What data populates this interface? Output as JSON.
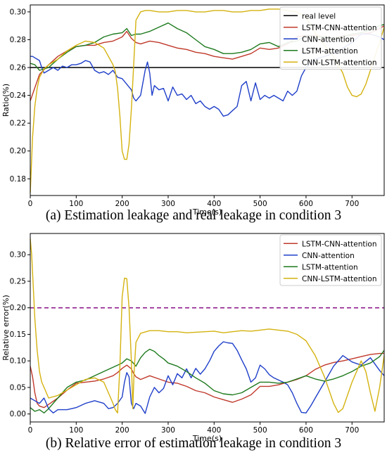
{
  "chart_data": [
    {
      "type": "line",
      "caption": "(a) Estimation leakage and real leakage in condition 3",
      "xlabel": "Time(s)",
      "ylabel": "Ratio(%)",
      "xlim": [
        0,
        770
      ],
      "ylim": [
        0.168,
        0.305
      ],
      "xticks": [
        0,
        100,
        200,
        300,
        400,
        500,
        600,
        700
      ],
      "yticks": [
        0.18,
        0.2,
        0.22,
        0.24,
        0.26,
        0.28,
        0.3
      ],
      "ytick_labels": [
        "0.18",
        "0.20",
        "0.22",
        "0.24",
        "0.26",
        "0.28",
        "0.30"
      ],
      "grid": false,
      "legend_position": "top-right",
      "series": [
        {
          "name": "real level",
          "color": "#000000",
          "x": [
            0,
            770
          ],
          "values": [
            0.26,
            0.26
          ]
        },
        {
          "name": "LSTM-CNN-attention",
          "color": "#c0392b",
          "x": [
            0,
            20,
            40,
            60,
            80,
            100,
            120,
            140,
            160,
            180,
            200,
            210,
            220,
            230,
            240,
            260,
            280,
            300,
            320,
            340,
            360,
            380,
            400,
            420,
            440,
            460,
            480,
            500,
            520,
            540,
            560,
            580,
            600,
            620,
            640,
            660,
            680,
            700,
            720,
            740,
            760,
            770
          ],
          "values": [
            0.236,
            0.255,
            0.262,
            0.268,
            0.272,
            0.275,
            0.276,
            0.276,
            0.278,
            0.279,
            0.282,
            0.286,
            0.281,
            0.278,
            0.277,
            0.279,
            0.278,
            0.276,
            0.274,
            0.273,
            0.271,
            0.27,
            0.268,
            0.267,
            0.266,
            0.268,
            0.27,
            0.274,
            0.273,
            0.274,
            0.277,
            0.282,
            0.283,
            0.283,
            0.282,
            0.281,
            0.283,
            0.283,
            0.284,
            0.285,
            0.288,
            0.29
          ]
        },
        {
          "name": "CNN-attention",
          "color": "#1f3fc9",
          "x": [
            0,
            5,
            10,
            15,
            20,
            25,
            30,
            40,
            50,
            60,
            70,
            80,
            90,
            100,
            110,
            120,
            130,
            140,
            150,
            160,
            170,
            180,
            190,
            200,
            210,
            220,
            225,
            230,
            240,
            250,
            255,
            260,
            265,
            270,
            280,
            290,
            300,
            310,
            320,
            330,
            340,
            350,
            360,
            370,
            380,
            390,
            400,
            410,
            420,
            430,
            440,
            450,
            460,
            470,
            480,
            490,
            500,
            510,
            520,
            530,
            540,
            550,
            560,
            570,
            580,
            590,
            600,
            620,
            640,
            660,
            680,
            700,
            720,
            740,
            760,
            770
          ],
          "values": [
            0.268,
            0.268,
            0.267,
            0.266,
            0.265,
            0.26,
            0.256,
            0.258,
            0.26,
            0.258,
            0.261,
            0.26,
            0.262,
            0.262,
            0.263,
            0.265,
            0.264,
            0.258,
            0.256,
            0.257,
            0.255,
            0.258,
            0.253,
            0.252,
            0.248,
            0.244,
            0.238,
            0.236,
            0.24,
            0.258,
            0.264,
            0.256,
            0.24,
            0.247,
            0.244,
            0.245,
            0.236,
            0.246,
            0.24,
            0.241,
            0.237,
            0.24,
            0.234,
            0.236,
            0.232,
            0.23,
            0.232,
            0.23,
            0.225,
            0.226,
            0.229,
            0.232,
            0.247,
            0.25,
            0.236,
            0.249,
            0.237,
            0.24,
            0.238,
            0.24,
            0.238,
            0.236,
            0.243,
            0.24,
            0.243,
            0.254,
            0.26,
            0.266,
            0.268,
            0.27,
            0.274,
            0.278,
            0.284,
            0.284,
            0.282,
            0.28
          ]
        },
        {
          "name": "LSTM-attention",
          "color": "#1e7a1e",
          "x": [
            0,
            10,
            20,
            40,
            60,
            80,
            100,
            120,
            140,
            160,
            180,
            200,
            210,
            220,
            230,
            240,
            260,
            280,
            300,
            320,
            340,
            360,
            380,
            400,
            420,
            440,
            460,
            480,
            500,
            520,
            540,
            560,
            580,
            600,
            620,
            640,
            660,
            680,
            700,
            720,
            740,
            760,
            770
          ],
          "values": [
            0.263,
            0.262,
            0.258,
            0.26,
            0.266,
            0.271,
            0.275,
            0.276,
            0.278,
            0.282,
            0.284,
            0.285,
            0.288,
            0.283,
            0.284,
            0.284,
            0.286,
            0.289,
            0.292,
            0.288,
            0.285,
            0.28,
            0.275,
            0.273,
            0.27,
            0.27,
            0.271,
            0.273,
            0.277,
            0.278,
            0.275,
            0.278,
            0.279,
            0.283,
            0.282,
            0.282,
            0.281,
            0.282,
            0.284,
            0.285,
            0.287,
            0.29,
            0.291
          ]
        },
        {
          "name": "CNN-LSTM-attention",
          "color": "#d4b20f",
          "x": [
            0,
            5,
            10,
            15,
            20,
            30,
            40,
            60,
            80,
            100,
            120,
            140,
            160,
            170,
            180,
            185,
            190,
            195,
            200,
            205,
            210,
            215,
            220,
            225,
            230,
            240,
            250,
            260,
            280,
            300,
            320,
            340,
            360,
            380,
            400,
            420,
            440,
            460,
            480,
            500,
            520,
            540,
            560,
            580,
            600,
            620,
            640,
            660,
            680,
            690,
            700,
            710,
            720,
            730,
            740,
            750,
            760,
            770
          ],
          "values": [
            0.17,
            0.21,
            0.232,
            0.245,
            0.253,
            0.259,
            0.262,
            0.266,
            0.272,
            0.276,
            0.279,
            0.278,
            0.274,
            0.268,
            0.262,
            0.257,
            0.245,
            0.225,
            0.2,
            0.194,
            0.194,
            0.205,
            0.23,
            0.262,
            0.294,
            0.3,
            0.301,
            0.301,
            0.3,
            0.3,
            0.301,
            0.301,
            0.3,
            0.3,
            0.301,
            0.301,
            0.3,
            0.3,
            0.301,
            0.301,
            0.302,
            0.302,
            0.301,
            0.3,
            0.296,
            0.285,
            0.276,
            0.268,
            0.256,
            0.246,
            0.24,
            0.239,
            0.241,
            0.248,
            0.258,
            0.268,
            0.278,
            0.289
          ]
        }
      ]
    },
    {
      "type": "line",
      "caption": "(b) Relative error of estimation leakage in condition 3",
      "xlabel": "Time(s)",
      "ylabel": "Relative error(%)",
      "xlim": [
        0,
        770
      ],
      "ylim": [
        -0.015,
        0.34
      ],
      "xticks": [
        0,
        100,
        200,
        300,
        400,
        500,
        600,
        700
      ],
      "yticks": [
        0.0,
        0.05,
        0.1,
        0.15,
        0.2,
        0.25,
        0.3
      ],
      "ytick_labels": [
        "0.00",
        "0.05",
        "0.10",
        "0.15",
        "0.20",
        "0.25",
        "0.30"
      ],
      "grid": false,
      "legend_position": "top-right",
      "reference_line": {
        "y": 0.2,
        "color": "#8e1a8e",
        "style": "dashed"
      },
      "series": [
        {
          "name": "LSTM-CNN-attention",
          "color": "#c0392b",
          "x": [
            0,
            5,
            10,
            15,
            20,
            30,
            40,
            60,
            80,
            100,
            120,
            140,
            160,
            180,
            190,
            200,
            210,
            220,
            225,
            230,
            240,
            260,
            280,
            300,
            320,
            340,
            360,
            380,
            400,
            420,
            440,
            460,
            480,
            500,
            520,
            540,
            560,
            580,
            600,
            620,
            640,
            660,
            680,
            700,
            720,
            740,
            760,
            770
          ],
          "values": [
            0.09,
            0.07,
            0.04,
            0.02,
            0.015,
            0.012,
            0.018,
            0.03,
            0.045,
            0.058,
            0.06,
            0.062,
            0.066,
            0.072,
            0.078,
            0.086,
            0.092,
            0.085,
            0.076,
            0.07,
            0.065,
            0.072,
            0.066,
            0.06,
            0.058,
            0.052,
            0.044,
            0.04,
            0.032,
            0.027,
            0.022,
            0.028,
            0.036,
            0.052,
            0.052,
            0.055,
            0.06,
            0.065,
            0.072,
            0.084,
            0.092,
            0.097,
            0.1,
            0.104,
            0.108,
            0.112,
            0.114,
            0.114
          ]
        },
        {
          "name": "CNN-attention",
          "color": "#1f3fc9",
          "x": [
            0,
            10,
            20,
            30,
            40,
            50,
            60,
            80,
            100,
            120,
            140,
            160,
            170,
            180,
            190,
            200,
            205,
            210,
            215,
            220,
            225,
            230,
            240,
            250,
            260,
            270,
            280,
            290,
            300,
            310,
            320,
            330,
            340,
            350,
            360,
            370,
            380,
            390,
            400,
            410,
            420,
            430,
            440,
            450,
            460,
            470,
            480,
            490,
            500,
            510,
            520,
            530,
            540,
            550,
            560,
            570,
            580,
            590,
            600,
            610,
            620,
            640,
            660,
            680,
            700,
            720,
            740,
            760,
            770
          ],
          "values": [
            0.03,
            0.025,
            0.02,
            0.03,
            0.01,
            0.002,
            0.008,
            0.008,
            0.012,
            0.02,
            0.025,
            0.02,
            0.01,
            0.012,
            0.02,
            0.032,
            0.06,
            0.078,
            0.07,
            0.02,
            0.01,
            0.02,
            0.015,
            0.001,
            0.032,
            0.05,
            0.04,
            0.048,
            0.072,
            0.055,
            0.076,
            0.068,
            0.085,
            0.068,
            0.086,
            0.075,
            0.085,
            0.1,
            0.118,
            0.128,
            0.136,
            0.134,
            0.133,
            0.12,
            0.102,
            0.085,
            0.06,
            0.068,
            0.092,
            0.085,
            0.074,
            0.068,
            0.064,
            0.06,
            0.055,
            0.04,
            0.02,
            0.003,
            0.002,
            0.015,
            0.03,
            0.06,
            0.09,
            0.11,
            0.098,
            0.092,
            0.106,
            0.082,
            0.072
          ]
        },
        {
          "name": "LSTM-attention",
          "color": "#1e7a1e",
          "x": [
            0,
            10,
            20,
            30,
            40,
            60,
            80,
            100,
            120,
            140,
            160,
            180,
            200,
            210,
            220,
            230,
            240,
            250,
            260,
            270,
            280,
            290,
            300,
            320,
            340,
            360,
            380,
            400,
            420,
            440,
            460,
            480,
            500,
            520,
            540,
            560,
            580,
            600,
            620,
            640,
            660,
            680,
            700,
            720,
            740,
            760,
            770
          ],
          "values": [
            0.012,
            0.005,
            0.008,
            0.002,
            0.01,
            0.03,
            0.05,
            0.06,
            0.064,
            0.072,
            0.08,
            0.088,
            0.096,
            0.104,
            0.1,
            0.09,
            0.106,
            0.116,
            0.122,
            0.118,
            0.11,
            0.104,
            0.096,
            0.09,
            0.08,
            0.068,
            0.058,
            0.044,
            0.038,
            0.036,
            0.04,
            0.05,
            0.06,
            0.06,
            0.058,
            0.06,
            0.066,
            0.072,
            0.066,
            0.062,
            0.066,
            0.072,
            0.08,
            0.09,
            0.096,
            0.108,
            0.12
          ]
        },
        {
          "name": "CNN-LSTM-attention",
          "color": "#d4b20f",
          "x": [
            0,
            3,
            6,
            10,
            15,
            20,
            25,
            30,
            40,
            60,
            80,
            100,
            120,
            140,
            160,
            170,
            180,
            185,
            190,
            195,
            200,
            205,
            210,
            215,
            220,
            223,
            226,
            230,
            240,
            260,
            280,
            300,
            320,
            340,
            360,
            380,
            400,
            420,
            440,
            460,
            480,
            500,
            520,
            540,
            560,
            580,
            600,
            620,
            640,
            660,
            670,
            680,
            700,
            720,
            730,
            740,
            750,
            760,
            770
          ],
          "values": [
            0.33,
            0.3,
            0.25,
            0.18,
            0.12,
            0.08,
            0.06,
            0.05,
            0.03,
            0.035,
            0.045,
            0.055,
            0.065,
            0.068,
            0.06,
            0.04,
            0.02,
            0.008,
            0.002,
            0.09,
            0.22,
            0.256,
            0.255,
            0.2,
            0.1,
            0.01,
            0.08,
            0.135,
            0.152,
            0.157,
            0.157,
            0.155,
            0.155,
            0.153,
            0.154,
            0.155,
            0.156,
            0.153,
            0.155,
            0.157,
            0.156,
            0.158,
            0.16,
            0.158,
            0.156,
            0.15,
            0.138,
            0.11,
            0.07,
            0.02,
            0.003,
            0.01,
            0.06,
            0.1,
            0.08,
            0.04,
            0.005,
            0.05,
            0.11
          ]
        }
      ]
    }
  ]
}
